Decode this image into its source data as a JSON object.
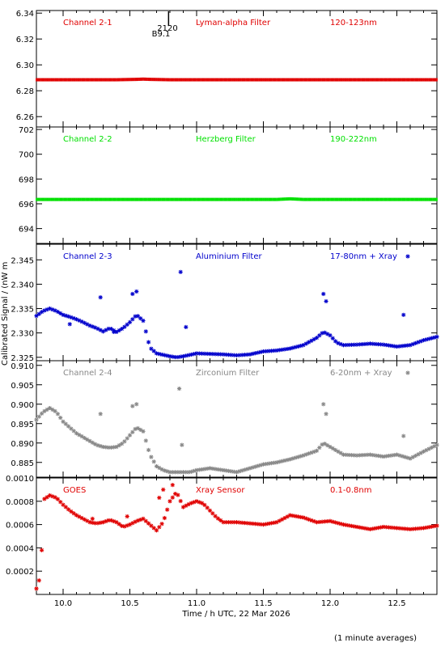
{
  "figure": {
    "ylabel": "Calibrated Signal / (nW m",
    "xlabel": "Time / h UTC, 22 Mar 2026",
    "footnote": "(1 minute averages)",
    "marker_label_top": "2120",
    "marker_label_bottom": "B9.1",
    "marker_time": 10.79
  },
  "chart_data": [
    {
      "type": "scatter",
      "channel": "Channel 2-1",
      "filter": "Lyman-alpha Filter",
      "band": "120-123nm",
      "color": "#e00000",
      "xlim": [
        9.8,
        12.8
      ],
      "ylim": [
        6.252,
        6.342
      ],
      "yticks": [
        6.26,
        6.28,
        6.3,
        6.32,
        6.34
      ],
      "ytick_labels": [
        "6.26",
        "6.28",
        "6.30",
        "6.32",
        "6.34"
      ],
      "series": [
        {
          "x": [
            9.8,
            10.0,
            10.2,
            10.4,
            10.55,
            10.6,
            10.65,
            10.8,
            11.0,
            11.2,
            11.4,
            11.6,
            11.8,
            12.0,
            12.2,
            12.4,
            12.6,
            12.8
          ],
          "y": [
            6.2885,
            6.2885,
            6.2885,
            6.2885,
            6.2888,
            6.289,
            6.2888,
            6.2885,
            6.2885,
            6.2885,
            6.2885,
            6.2885,
            6.2885,
            6.2885,
            6.2885,
            6.2885,
            6.2885,
            6.2885
          ]
        }
      ]
    },
    {
      "type": "scatter",
      "channel": "Channel 2-2",
      "filter": "Herzberg Filter",
      "band": "190-222nm",
      "color": "#00e000",
      "xlim": [
        9.8,
        12.8
      ],
      "ylim": [
        692.8,
        702.2
      ],
      "yticks": [
        694,
        696,
        698,
        700,
        702
      ],
      "ytick_labels": [
        "694",
        "696",
        "698",
        "700",
        "702"
      ],
      "series": [
        {
          "x": [
            9.8,
            10.0,
            10.2,
            10.4,
            10.6,
            10.8,
            11.0,
            11.2,
            11.4,
            11.6,
            11.7,
            11.8,
            12.0,
            12.2,
            12.4,
            12.6,
            12.8
          ],
          "y": [
            696.35,
            696.35,
            696.35,
            696.35,
            696.35,
            696.35,
            696.35,
            696.35,
            696.35,
            696.35,
            696.4,
            696.35,
            696.35,
            696.35,
            696.35,
            696.35,
            696.35
          ]
        }
      ]
    },
    {
      "type": "scatter",
      "channel": "Channel 2-3",
      "filter": "Aluminium Filter",
      "band": "17-80nm + Xray",
      "color": "#0000cc",
      "xlim": [
        9.8,
        12.8
      ],
      "ylim": [
        2.3243,
        2.3482
      ],
      "yticks": [
        2.325,
        2.33,
        2.335,
        2.34,
        2.345
      ],
      "ytick_labels": [
        "2.325",
        "2.330",
        "2.335",
        "2.340",
        "2.345"
      ],
      "series": [
        {
          "x": [
            9.8,
            9.85,
            9.9,
            9.95,
            10.0,
            10.05,
            10.1,
            10.15,
            10.2,
            10.25,
            10.3,
            10.35,
            10.4,
            10.45,
            10.5,
            10.55,
            10.6,
            10.65,
            10.7,
            10.75,
            10.8,
            10.85,
            10.9,
            10.95,
            11.0,
            11.1,
            11.2,
            11.3,
            11.4,
            11.5,
            11.6,
            11.7,
            11.8,
            11.9,
            11.95,
            12.0,
            12.05,
            12.1,
            12.2,
            12.3,
            12.4,
            12.5,
            12.6,
            12.7,
            12.8
          ],
          "y": [
            2.3335,
            2.3345,
            2.335,
            2.3345,
            2.3337,
            2.3333,
            2.3328,
            2.3322,
            2.3315,
            2.331,
            2.3303,
            2.331,
            2.3302,
            2.331,
            2.3322,
            2.3337,
            2.3325,
            2.327,
            2.3258,
            2.3255,
            2.3252,
            2.325,
            2.3252,
            2.3255,
            2.3258,
            2.3257,
            2.3256,
            2.3254,
            2.3256,
            2.3262,
            2.3264,
            2.3268,
            2.3275,
            2.329,
            2.3302,
            2.3295,
            2.328,
            2.3275,
            2.3276,
            2.3278,
            2.3276,
            2.3272,
            2.3275,
            2.3285,
            2.3292
          ]
        },
        {
          "x": [
            10.05,
            10.28,
            10.38,
            10.52,
            10.55,
            10.88,
            10.92,
            11.95,
            11.97,
            12.55
          ],
          "y": [
            2.3318,
            2.3373,
            2.3302,
            2.338,
            2.3385,
            2.3425,
            2.3312,
            2.338,
            2.3365,
            2.3337
          ]
        }
      ]
    },
    {
      "type": "scatter",
      "channel": "Channel 2-4",
      "filter": "Zirconium Filter",
      "band": "6-20nm + Xray",
      "color": "#888888",
      "xlim": [
        9.8,
        12.8
      ],
      "ylim": [
        0.8812,
        0.9112
      ],
      "yticks": [
        0.885,
        0.89,
        0.895,
        0.9,
        0.905,
        0.91
      ],
      "ytick_labels": [
        "0.885",
        "0.890",
        "0.895",
        "0.900",
        "0.905",
        "0.910"
      ],
      "series": [
        {
          "x": [
            9.8,
            9.85,
            9.9,
            9.95,
            10.0,
            10.05,
            10.1,
            10.15,
            10.2,
            10.25,
            10.3,
            10.35,
            10.4,
            10.45,
            10.5,
            10.55,
            10.6,
            10.65,
            10.7,
            10.75,
            10.8,
            10.85,
            10.9,
            10.95,
            11.0,
            11.1,
            11.2,
            11.3,
            11.4,
            11.5,
            11.6,
            11.7,
            11.8,
            11.9,
            11.95,
            12.0,
            12.05,
            12.1,
            12.2,
            12.3,
            12.4,
            12.5,
            12.6,
            12.7,
            12.8
          ],
          "y": [
            0.896,
            0.898,
            0.899,
            0.898,
            0.8955,
            0.894,
            0.8925,
            0.8915,
            0.8905,
            0.8895,
            0.889,
            0.8888,
            0.889,
            0.89,
            0.892,
            0.894,
            0.893,
            0.887,
            0.884,
            0.883,
            0.8825,
            0.8825,
            0.8825,
            0.8825,
            0.883,
            0.8835,
            0.883,
            0.8825,
            0.8835,
            0.8845,
            0.885,
            0.8858,
            0.8868,
            0.888,
            0.89,
            0.889,
            0.888,
            0.887,
            0.8868,
            0.887,
            0.8865,
            0.887,
            0.886,
            0.8878,
            0.8895
          ]
        },
        {
          "x": [
            10.28,
            10.52,
            10.55,
            10.87,
            10.89,
            11.95,
            11.97,
            12.55
          ],
          "y": [
            0.8975,
            0.8995,
            0.9,
            0.904,
            0.8895,
            0.9,
            0.8975,
            0.8918
          ]
        }
      ]
    },
    {
      "type": "scatter",
      "channel": "GOES",
      "filter": "Xray Sensor",
      "band": "0.1-0.8nm",
      "color": "#e00000",
      "xlim": [
        9.8,
        12.8
      ],
      "ylim": [
        0.0,
        0.001
      ],
      "yticks": [
        0.0002,
        0.0004,
        0.0006,
        0.0008,
        0.001
      ],
      "ytick_labels": [
        "0.0002",
        "0.0004",
        "0.0006",
        "0.0008",
        "0.0010"
      ],
      "series": [
        {
          "x": [
            9.8,
            9.82,
            9.84,
            9.86,
            9.9,
            9.95,
            10.0,
            10.05,
            10.1,
            10.15,
            10.2,
            10.25,
            10.3,
            10.35,
            10.4,
            10.45,
            10.5,
            10.55,
            10.6,
            10.65,
            10.7,
            10.75,
            10.8,
            10.85,
            10.9,
            10.95,
            11.0,
            11.05,
            11.1,
            11.15,
            11.2,
            11.3,
            11.4,
            11.5,
            11.6,
            11.7,
            11.8,
            11.9,
            12.0,
            12.1,
            12.2,
            12.3,
            12.4,
            12.5,
            12.6,
            12.7,
            12.8
          ],
          "y": [
            5e-05,
            0.00012,
            0.00038,
            0.00082,
            0.00085,
            0.00083,
            0.00077,
            0.00072,
            0.00068,
            0.00065,
            0.00062,
            0.00061,
            0.00062,
            0.00064,
            0.00062,
            0.00058,
            0.0006,
            0.00063,
            0.00065,
            0.0006,
            0.00055,
            0.00062,
            0.0008,
            0.00088,
            0.00075,
            0.00078,
            0.0008,
            0.00078,
            0.00072,
            0.00066,
            0.00062,
            0.00062,
            0.00061,
            0.0006,
            0.00062,
            0.00068,
            0.00066,
            0.00062,
            0.00063,
            0.0006,
            0.00058,
            0.00056,
            0.00058,
            0.00057,
            0.00056,
            0.00057,
            0.00059
          ]
        },
        {
          "x": [
            10.22,
            10.48,
            10.72,
            10.75,
            10.82
          ],
          "y": [
            0.00065,
            0.00067,
            0.00083,
            0.0009,
            0.00094
          ]
        }
      ]
    }
  ],
  "xaxis": {
    "ticks": [
      10.0,
      10.5,
      11.0,
      11.5,
      12.0,
      12.5
    ],
    "tick_labels": [
      "10.0",
      "10.5",
      "11.0",
      "11.5",
      "12.0",
      "12.5"
    ],
    "minor_step": 0.1
  }
}
